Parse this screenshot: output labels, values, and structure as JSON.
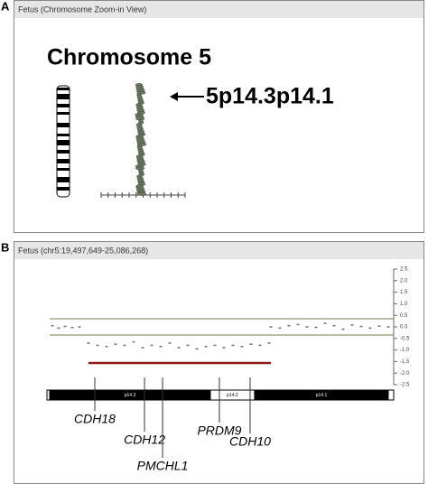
{
  "panel_a": {
    "label": "A",
    "header": "Fetus (Chromosome Zoom-in View)",
    "title": "Chromosome 5",
    "callout": "5p14.3p14.1"
  },
  "panel_b": {
    "label": "B",
    "header": "Fetus (chr5:19,497,649-25,086,268)"
  },
  "chart_data": {
    "type": "scatter",
    "x": [
      19542000,
      19646000,
      19751000,
      19870000,
      19989000,
      20138000,
      20288000,
      20436000,
      20585000,
      20734000,
      20884000,
      21033000,
      21182000,
      21331000,
      21480000,
      21629000,
      21778000,
      21927000,
      22076000,
      22225000,
      22374000,
      22523000,
      22672000,
      22821000,
      22970000,
      23119000,
      23149000,
      23298000,
      23447000,
      23596000,
      23745000,
      23894000,
      24043000,
      24192000,
      24341000,
      24490000,
      24639000,
      24788000,
      24937000,
      25086000
    ],
    "values": [
      0.05,
      -0.05,
      0.02,
      -0.03,
      0.0,
      -0.7,
      -0.8,
      -0.85,
      -0.75,
      -0.8,
      -0.65,
      -0.9,
      -0.8,
      -0.85,
      -0.7,
      -0.9,
      -0.8,
      -0.95,
      -0.85,
      -0.8,
      -0.9,
      -0.8,
      -0.85,
      -0.75,
      -0.8,
      -0.7,
      0.0,
      -0.05,
      0.05,
      0.1,
      0.0,
      -0.02,
      0.15,
      0.05,
      -0.1,
      0.08,
      0.02,
      -0.05,
      0.03,
      0.0
    ],
    "color": "#777777",
    "xlim": [
      19497649,
      25086268
    ],
    "ylim": [
      -2.5,
      2.5
    ],
    "yticks": [
      2.5,
      {
        "value": 2,
        "label": "2.0"
      },
      1.5,
      {
        "value": 1,
        "label": "1.0"
      },
      0.5,
      {
        "value": 0,
        "label": "0.0"
      },
      -0.5,
      {
        "value": -1,
        "label": "-1.0"
      },
      -1.5,
      {
        "value": -2,
        "label": "-2.0"
      },
      -2.5
    ],
    "thresholds": [
      0.35,
      -0.35
    ],
    "region": [
      20138000,
      23149000
    ],
    "bands": [
      {
        "name": "p14.3",
        "start": 19497649,
        "end": 22150000
      },
      {
        "name": "p14.2",
        "start": 22150000,
        "end": 22880000
      },
      {
        "name": "p14.1",
        "start": 22880000,
        "end": 25086268
      }
    ],
    "genes": [
      {
        "name": "CDH18",
        "x": 20243000
      },
      {
        "name": "CDH12",
        "x": 21063000
      },
      {
        "name": "PMCHL1",
        "x": 21361000
      },
      {
        "name": "PRDM9",
        "x": 22299000
      },
      {
        "name": "CDH10",
        "x": 22806000
      }
    ]
  }
}
